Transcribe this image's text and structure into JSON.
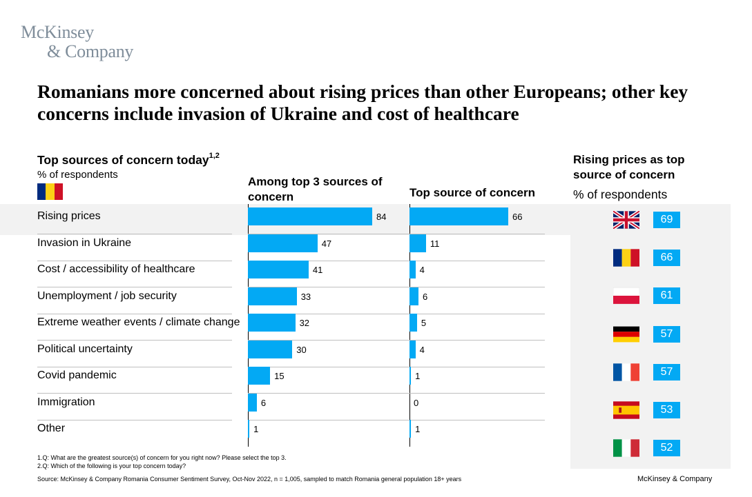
{
  "logo": {
    "line1": "McKinsey",
    "line2": "& Company"
  },
  "title": "Romanians more concerned about rising prices than other Europeans; other key concerns include invasion of Ukraine and cost of healthcare",
  "left_header": {
    "title": "Top sources of concern today",
    "sup": "1,2",
    "subtitle": "% of respondents"
  },
  "colors": {
    "bar": "#03a9f4",
    "highlight": "#f2f2f2",
    "separator": "#bfbfbf"
  },
  "chart_data": [
    {
      "type": "bar",
      "orientation": "horizontal",
      "title": "Among top 3 sources of concern",
      "categories": [
        "Rising prices",
        "Invasion in Ukraine",
        "Cost / accessibility of healthcare",
        "Unemployment / job security",
        "Extreme weather events / climate change",
        "Political uncertainty",
        "Covid pandemic",
        "Immigration",
        "Other"
      ],
      "values": [
        84,
        47,
        41,
        33,
        32,
        30,
        15,
        6,
        1
      ],
      "xlim": [
        0,
        100
      ]
    },
    {
      "type": "bar",
      "orientation": "horizontal",
      "title": "Top source of concern",
      "categories": [
        "Rising prices",
        "Invasion in Ukraine",
        "Cost / accessibility of healthcare",
        "Unemployment / job security",
        "Extreme weather events / climate change",
        "Political uncertainty",
        "Covid pandemic",
        "Immigration",
        "Other"
      ],
      "values": [
        66,
        11,
        4,
        6,
        5,
        4,
        1,
        0,
        1
      ],
      "xlim": [
        0,
        100
      ]
    }
  ],
  "right_panel": {
    "title": "Rising prices as top source of concern",
    "subtitle": "% of respondents",
    "countries": [
      {
        "flag": "uk-flag",
        "value": 69
      },
      {
        "flag": "romania-flag",
        "value": 66
      },
      {
        "flag": "poland-flag",
        "value": 61
      },
      {
        "flag": "germany-flag",
        "value": 57
      },
      {
        "flag": "france-flag",
        "value": 57
      },
      {
        "flag": "spain-flag",
        "value": 53
      },
      {
        "flag": "italy-flag",
        "value": 52
      }
    ]
  },
  "footnotes": {
    "q1": "1.Q: What are the greatest source(s) of concern for you right now? Please select the top 3.",
    "q2": "2.Q: Which of the following is your top concern today?",
    "source": "Source: McKinsey & Company Romania Consumer Sentiment Survey, Oct-Nov 2022, n = 1,005, sampled to match Romania general population 18+ years",
    "brand": "McKinsey & Company"
  }
}
